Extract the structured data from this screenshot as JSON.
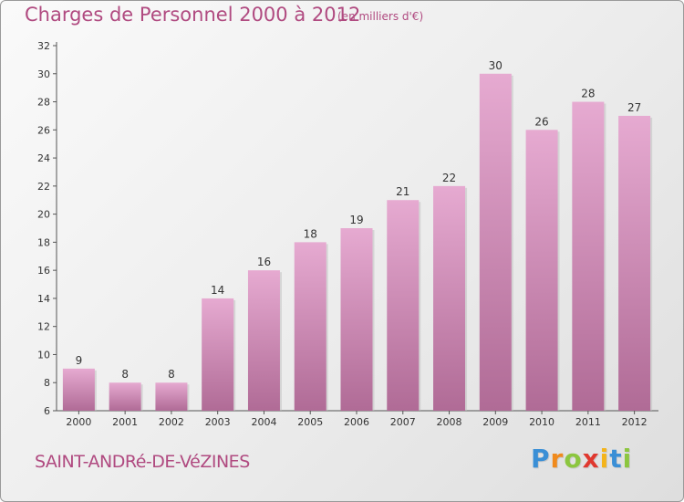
{
  "header": {
    "title": "Charges de Personnel 2000 à 2012",
    "unit": "(en milliers d'€)"
  },
  "footer": {
    "commune": "SAINT-ANDRé-DE-VéZINES",
    "brand_letters": [
      {
        "char": "P",
        "color": "#3a8fd6"
      },
      {
        "char": "r",
        "color": "#f08a1c"
      },
      {
        "char": "o",
        "color": "#8cc63f"
      },
      {
        "char": "x",
        "color": "#e0382f"
      },
      {
        "char": "i",
        "color": "#f4b41a"
      },
      {
        "char": "t",
        "color": "#3a8fd6"
      },
      {
        "char": "i",
        "color": "#8cc63f"
      }
    ]
  },
  "colors": {
    "bar_top": "#e6aad1",
    "bar_bottom": "#b06b96",
    "accent": "#b04a80"
  },
  "chart_data": {
    "type": "bar",
    "categories": [
      "2000",
      "2001",
      "2002",
      "2003",
      "2004",
      "2005",
      "2006",
      "2007",
      "2008",
      "2009",
      "2010",
      "2011",
      "2012"
    ],
    "values": [
      9,
      8,
      8,
      14,
      16,
      18,
      19,
      21,
      22,
      30,
      26,
      28,
      27
    ],
    "ylim": [
      6,
      32
    ],
    "yticks": [
      6,
      8,
      10,
      12,
      14,
      16,
      18,
      20,
      22,
      24,
      26,
      28,
      30,
      32
    ],
    "grid": false,
    "data_labels": true
  }
}
